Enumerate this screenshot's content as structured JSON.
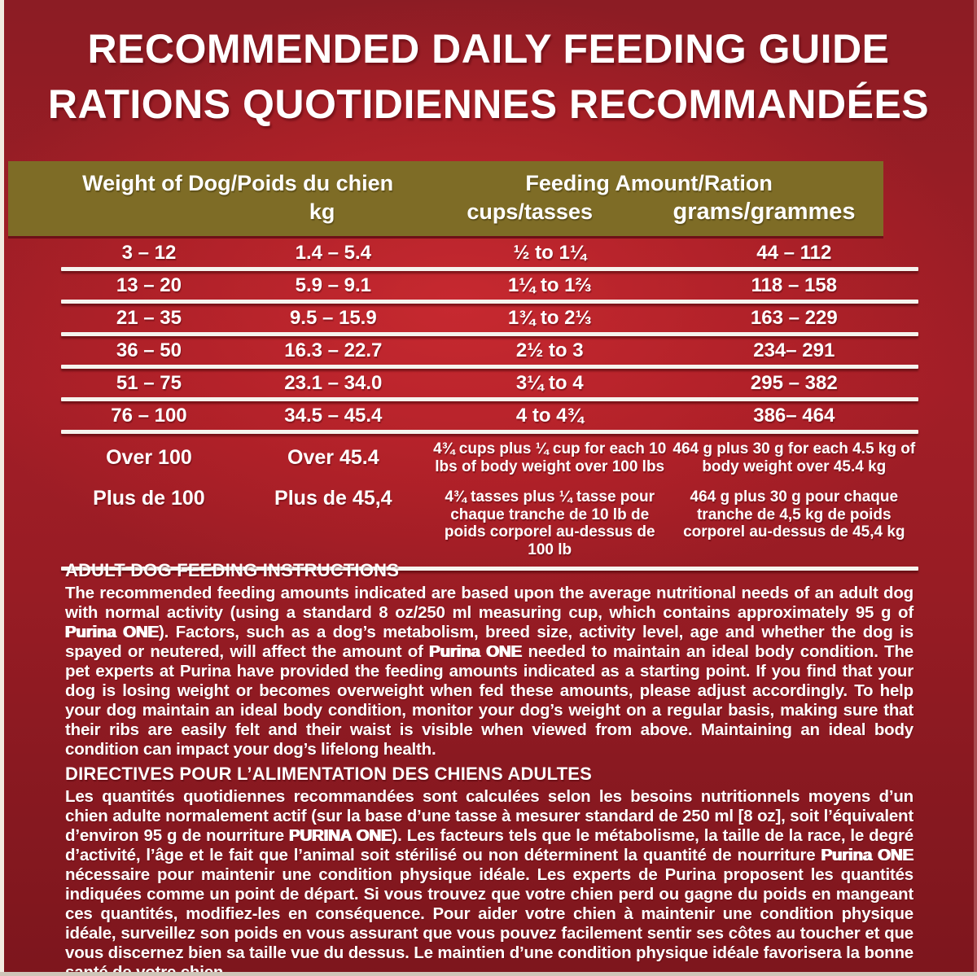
{
  "title": {
    "line1": "RECOMMENDED DAILY FEEDING GUIDE",
    "line2": "RATIONS QUOTIDIENNES RECOMMANDÉES"
  },
  "colors": {
    "background_red": "#a21e27",
    "dark_red": "#8a1b22",
    "header_olive": "#7e6c26",
    "text_white": "#ffffff"
  },
  "table": {
    "group_headers": [
      "Weight of Dog/Poids du chien",
      "Feeding Amount/Ration"
    ],
    "unit_headers": [
      "",
      "kg",
      "cups/tasses",
      "grams/grammes"
    ],
    "rows": [
      [
        "3 – 12",
        "1.4 – 5.4",
        "½ to 1¼",
        "44 – 112"
      ],
      [
        "13 – 20",
        "5.9 – 9.1",
        "1¼ to 1⅔",
        "118 – 158"
      ],
      [
        "21 – 35",
        "9.5 – 15.9",
        "1¾ to 2⅓",
        "163 – 229"
      ],
      [
        "36 – 50",
        "16.3 – 22.7",
        "2½ to 3",
        "234– 291"
      ],
      [
        "51 – 75",
        "23.1 – 34.0",
        "3¼ to 4",
        "295 – 382"
      ],
      [
        "76 – 100",
        "34.5 – 45.4",
        "4 to 4¾",
        "386– 464"
      ]
    ],
    "over_row": {
      "lbs_en": "Over 100",
      "lbs_fr": "Plus de 100",
      "kg_en": "Over 45.4",
      "kg_fr": "Plus de 45,4",
      "cups_en": "4¾ cups plus ¼ cup for each 10 lbs of body weight over 100 lbs",
      "cups_fr": "4¾ tasses plus ¼ tasse pour chaque tranche de 10 lb de poids corporel au-dessus de 100 lb",
      "grams_en": "464 g plus 30 g for each 4.5 kg of body weight over 45.4 kg",
      "grams_fr": "464 g plus 30 g pour chaque tranche de 4,5 kg de poids corporel au-dessus de 45,4 kg"
    }
  },
  "sections": {
    "en": {
      "heading": "ADULT DOG FEEDING INSTRUCTIONS",
      "segments": [
        {
          "t": "The recommended feeding amounts indicated are based upon the average nutritional needs of an adult dog with normal activity (using a standard 8 oz/250 ml measuring cup, which contains approximately 95 g of ",
          "b": false
        },
        {
          "t": "Purina ONE",
          "b": true
        },
        {
          "t": "). Factors, such as a dog’s metabolism, breed size, activity level, age and whether the dog is spayed or neutered, will affect the amount of ",
          "b": false
        },
        {
          "t": "Purina ONE",
          "b": true
        },
        {
          "t": " needed to maintain an ideal body condition. The pet experts at Purina have provided the feeding amounts indicated as a starting point. If you find that your dog is losing weight or becomes overweight when fed these amounts, please adjust accordingly. To help your dog maintain an ideal body condition, monitor your dog’s weight on a regular basis, making sure that their ribs are easily felt and their waist is visible when viewed from above. Maintaining an ideal body condition can impact your dog’s lifelong health.",
          "b": false
        }
      ]
    },
    "fr": {
      "heading": "DIRECTIVES POUR L’ALIMENTATION DES CHIENS ADULTES",
      "segments": [
        {
          "t": "Les quantités quotidiennes recommandées sont calculées selon les besoins nutritionnels moyens d’un chien adulte normalement actif (sur la base d’une tasse à mesurer standard de 250 ml [8 oz], soit l’équivalent d’environ 95 g de nourriture ",
          "b": false
        },
        {
          "t": "PURINA ONE",
          "b": true
        },
        {
          "t": "). Les facteurs tels que le métabolisme, la taille de la race, le degré d’activité, l’âge et le fait que l’animal soit stérilisé ou non déterminent la quantité de nourriture ",
          "b": false
        },
        {
          "t": "Purina ONE",
          "b": true
        },
        {
          "t": " nécessaire pour maintenir une condition physique idéale. Les experts de Purina proposent les quantités indiquées comme un point de départ. Si vous trouvez que votre chien perd ou gagne du poids en mangeant ces quantités, modifiez-les en conséquence. Pour aider votre chien à maintenir une condition physique idéale, surveillez son poids en vous assurant que vous pouvez facilement sentir ses côtes au toucher et que vous discernez bien sa taille vue du dessus. Le maintien d’une condition physique idéale favorisera la bonne santé de votre chien.",
          "b": false
        }
      ]
    }
  }
}
